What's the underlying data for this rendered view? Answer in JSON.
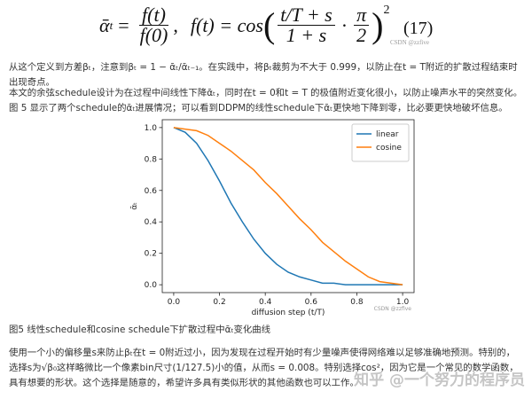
{
  "equation": {
    "lhs": "ᾱ",
    "lhs_sub": "t",
    "eq": "=",
    "frac1_num": "f(t)",
    "frac1_den": "f(0)",
    "sep": ",",
    "rhs_left": "f(t) = cos",
    "open": "(",
    "frac2_num": "t/T + s",
    "frac2_den": "1 + s",
    "dot": "·",
    "frac3_num": "π",
    "frac3_den": "2",
    "close": ")",
    "power": "2",
    "number": "(17)"
  },
  "watermark_top": "CSDN @zzfive",
  "paragraphs": [
    "从这个定义到方差βₜ，注意到βₜ = 1 − ᾱₜ/ᾱₜ₋₁。在实践中，将βₜ裁剪为不大于 0.999，以防止在t = T附近的扩散过程结束时出现奇点。",
    "本文的余弦schedule设计为在过程中间线性下降ᾱₜ，同时在t = 0和t = T 的极值附近变化很小，以防止噪声水平的突然变化。图 5 显示了两个schedule的ᾱₜ进展情况；可以看到DDPM的线性schedule下ᾱₜ更快地下降到零，比必要更快地破坏信息。"
  ],
  "chart_data": {
    "type": "line",
    "xlabel": "diffusion step (t/T)",
    "ylabel": "ᾱₜ",
    "watermark": "CSDN @zzfive",
    "x": [
      0,
      0.05,
      0.1,
      0.15,
      0.2,
      0.25,
      0.3,
      0.35,
      0.4,
      0.45,
      0.5,
      0.55,
      0.6,
      0.65,
      0.7,
      0.75,
      0.8,
      0.85,
      0.9,
      0.95,
      1.0
    ],
    "series": [
      {
        "name": "linear",
        "color": "#1f77b4",
        "values": [
          1,
          0.97,
          0.9,
          0.79,
          0.66,
          0.52,
          0.4,
          0.29,
          0.2,
          0.13,
          0.08,
          0.05,
          0.03,
          0.01,
          0.01,
          0,
          0,
          0,
          0,
          0,
          0
        ]
      },
      {
        "name": "cosine",
        "color": "#ff7f0e",
        "values": [
          1,
          0.99,
          0.98,
          0.95,
          0.9,
          0.85,
          0.79,
          0.73,
          0.65,
          0.58,
          0.5,
          0.42,
          0.35,
          0.27,
          0.21,
          0.15,
          0.1,
          0.05,
          0.02,
          0.01,
          0
        ]
      }
    ],
    "xlim": [
      -0.05,
      1.05
    ],
    "ylim": [
      -0.05,
      1.05
    ],
    "xticks": [
      {
        "value": 0,
        "label": "0.0"
      },
      {
        "value": 0.2,
        "label": "0.2"
      },
      {
        "value": 0.4,
        "label": "0.4"
      },
      {
        "value": 0.6,
        "label": "0.6"
      },
      {
        "value": 0.8,
        "label": "0.8"
      },
      {
        "value": 1,
        "label": "1.0"
      }
    ],
    "yticks": [
      {
        "value": 0,
        "label": "0.0"
      },
      {
        "value": 0.2,
        "label": "0.2"
      },
      {
        "value": 0.4,
        "label": "0.4"
      },
      {
        "value": 0.6,
        "label": "0.6"
      },
      {
        "value": 0.8,
        "label": "0.8"
      },
      {
        "value": 1,
        "label": "1.0"
      }
    ],
    "legend": "upper right",
    "grid": false
  },
  "caption": "图5 线性schedule和cosine schedule下扩散过程中ᾱₜ变化曲线",
  "paragraph_last": "使用一个小的偏移量s来防止βₜ在t = 0附近过小，因为发现在过程开始时有少量噪声使得网络难以足够准确地预测。特别的，选择s为√β₀这样略微比一个像素bin尺寸(1/127.5)小的值，从而s = 0.008。特别选择cos²，因为它是一个常见的数学函数，具有想要的形状。这个选择是随意的，希望许多具有类似形状的其他函数也可以工作。",
  "watermark_bottom": "知乎 @一个努力的程序员"
}
